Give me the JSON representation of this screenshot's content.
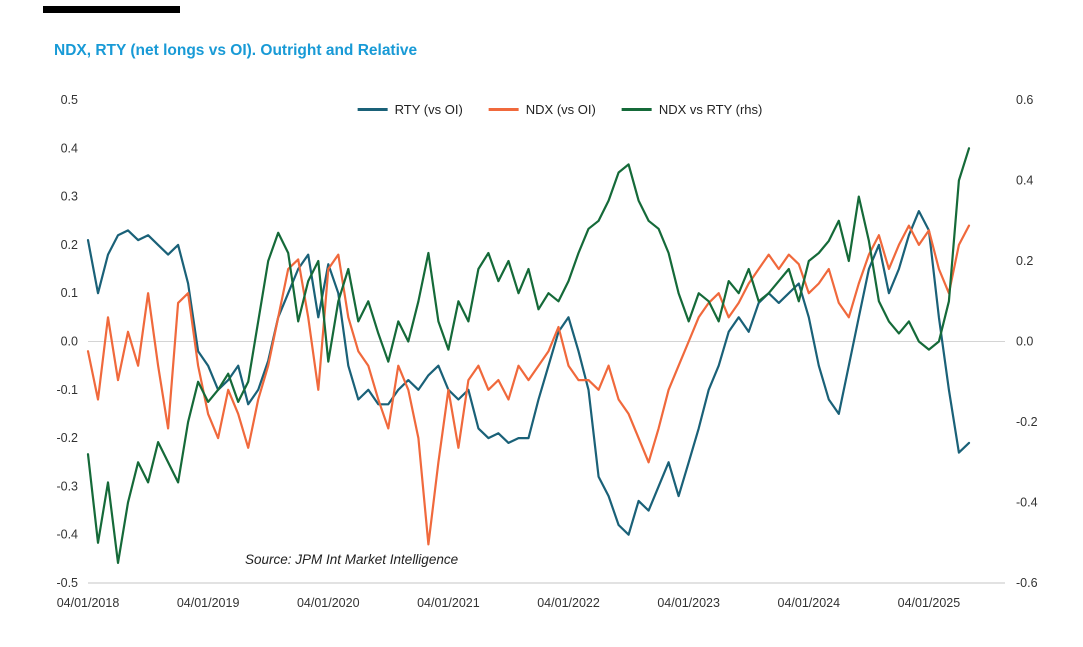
{
  "accent_bar_color": "#000000",
  "title_color": "#189ad6",
  "chart_data": {
    "type": "line",
    "title": "NDX, RTY (net longs vs OI). Outright and Relative",
    "source": "Source: JPM Int Market Intelligence",
    "legend_position": "top-center",
    "grid": "zero-line-only",
    "left_axis": {
      "min": -0.5,
      "max": 0.5,
      "ticks": [
        0.5,
        0.4,
        0.3,
        0.2,
        0.1,
        0.0,
        -0.1,
        -0.2,
        -0.3,
        -0.4,
        -0.5
      ]
    },
    "right_axis": {
      "min": -0.6,
      "max": 0.6,
      "ticks": [
        0.6,
        0.4,
        0.2,
        0.0,
        -0.2,
        -0.4,
        -0.6
      ]
    },
    "x_ticks": [
      "04/01/2018",
      "04/01/2019",
      "04/01/2020",
      "04/01/2021",
      "04/01/2022",
      "04/01/2023",
      "04/01/2024",
      "04/01/2025"
    ],
    "x": [
      "2018-04",
      "2018-05",
      "2018-06",
      "2018-07",
      "2018-08",
      "2018-09",
      "2018-10",
      "2018-11",
      "2018-12",
      "2019-01",
      "2019-02",
      "2019-03",
      "2019-04",
      "2019-05",
      "2019-06",
      "2019-07",
      "2019-08",
      "2019-09",
      "2019-10",
      "2019-11",
      "2019-12",
      "2020-01",
      "2020-02",
      "2020-03",
      "2020-04",
      "2020-05",
      "2020-06",
      "2020-07",
      "2020-08",
      "2020-09",
      "2020-10",
      "2020-11",
      "2020-12",
      "2021-01",
      "2021-02",
      "2021-03",
      "2021-04",
      "2021-05",
      "2021-06",
      "2021-07",
      "2021-08",
      "2021-09",
      "2021-10",
      "2021-11",
      "2021-12",
      "2022-01",
      "2022-02",
      "2022-03",
      "2022-04",
      "2022-05",
      "2022-06",
      "2022-07",
      "2022-08",
      "2022-09",
      "2022-10",
      "2022-11",
      "2022-12",
      "2023-01",
      "2023-02",
      "2023-03",
      "2023-04",
      "2023-05",
      "2023-06",
      "2023-07",
      "2023-08",
      "2023-09",
      "2023-10",
      "2023-11",
      "2023-12",
      "2024-01",
      "2024-02",
      "2024-03",
      "2024-04",
      "2024-05",
      "2024-06",
      "2024-07",
      "2024-08",
      "2024-09",
      "2024-10",
      "2024-11",
      "2024-12",
      "2025-01",
      "2025-02",
      "2025-03",
      "2025-04",
      "2025-05",
      "2025-06",
      "2025-07",
      "2025-08"
    ],
    "series": [
      {
        "name": "RTY (vs OI)",
        "axis": "left",
        "color": "#1a6178",
        "values": [
          0.21,
          0.1,
          0.18,
          0.22,
          0.23,
          0.21,
          0.22,
          0.2,
          0.18,
          0.2,
          0.12,
          -0.02,
          -0.05,
          -0.1,
          -0.08,
          -0.05,
          -0.13,
          -0.1,
          -0.04,
          0.05,
          0.1,
          0.15,
          0.18,
          0.05,
          0.16,
          0.1,
          -0.05,
          -0.12,
          -0.1,
          -0.13,
          -0.13,
          -0.1,
          -0.08,
          -0.1,
          -0.07,
          -0.05,
          -0.1,
          -0.12,
          -0.1,
          -0.18,
          -0.2,
          -0.19,
          -0.21,
          -0.2,
          -0.2,
          -0.12,
          -0.05,
          0.02,
          0.05,
          -0.02,
          -0.1,
          -0.28,
          -0.32,
          -0.38,
          -0.4,
          -0.33,
          -0.35,
          -0.3,
          -0.25,
          -0.32,
          -0.25,
          -0.18,
          -0.1,
          -0.05,
          0.02,
          0.05,
          0.02,
          0.08,
          0.1,
          0.08,
          0.1,
          0.12,
          0.05,
          -0.05,
          -0.12,
          -0.15,
          -0.05,
          0.05,
          0.15,
          0.2,
          0.1,
          0.15,
          0.22,
          0.27,
          0.23,
          0.05,
          -0.1,
          -0.23,
          -0.21
        ]
      },
      {
        "name": "NDX (vs OI)",
        "axis": "left",
        "color": "#f0693c",
        "values": [
          -0.02,
          -0.12,
          0.05,
          -0.08,
          0.02,
          -0.05,
          0.1,
          -0.05,
          -0.18,
          0.08,
          0.1,
          -0.05,
          -0.15,
          -0.2,
          -0.1,
          -0.15,
          -0.22,
          -0.12,
          -0.05,
          0.05,
          0.15,
          0.17,
          0.05,
          -0.1,
          0.15,
          0.18,
          0.05,
          -0.02,
          -0.05,
          -0.12,
          -0.18,
          -0.05,
          -0.1,
          -0.2,
          -0.42,
          -0.25,
          -0.1,
          -0.22,
          -0.08,
          -0.05,
          -0.1,
          -0.08,
          -0.12,
          -0.05,
          -0.08,
          -0.05,
          -0.02,
          0.03,
          -0.05,
          -0.08,
          -0.08,
          -0.1,
          -0.05,
          -0.12,
          -0.15,
          -0.2,
          -0.25,
          -0.18,
          -0.1,
          -0.05,
          0.0,
          0.05,
          0.08,
          0.1,
          0.05,
          0.08,
          0.12,
          0.15,
          0.18,
          0.15,
          0.18,
          0.16,
          0.1,
          0.12,
          0.15,
          0.08,
          0.05,
          0.12,
          0.18,
          0.22,
          0.15,
          0.2,
          0.24,
          0.2,
          0.23,
          0.15,
          0.1,
          0.2,
          0.24
        ]
      },
      {
        "name": "NDX vs RTY (rhs)",
        "axis": "right",
        "color": "#156a39",
        "values": [
          -0.28,
          -0.5,
          -0.35,
          -0.55,
          -0.4,
          -0.3,
          -0.35,
          -0.25,
          -0.3,
          -0.35,
          -0.2,
          -0.1,
          -0.15,
          -0.12,
          -0.08,
          -0.15,
          -0.1,
          0.05,
          0.2,
          0.27,
          0.22,
          0.05,
          0.15,
          0.2,
          -0.05,
          0.1,
          0.18,
          0.05,
          0.1,
          0.02,
          -0.05,
          0.05,
          0.0,
          0.1,
          0.22,
          0.05,
          -0.02,
          0.1,
          0.05,
          0.18,
          0.22,
          0.15,
          0.2,
          0.12,
          0.18,
          0.08,
          0.12,
          0.1,
          0.15,
          0.22,
          0.28,
          0.3,
          0.35,
          0.42,
          0.44,
          0.35,
          0.3,
          0.28,
          0.22,
          0.12,
          0.05,
          0.12,
          0.1,
          0.05,
          0.15,
          0.12,
          0.18,
          0.1,
          0.12,
          0.15,
          0.18,
          0.1,
          0.2,
          0.22,
          0.25,
          0.3,
          0.2,
          0.36,
          0.25,
          0.1,
          0.05,
          0.02,
          0.05,
          0.0,
          -0.02,
          0.0,
          0.1,
          0.4,
          0.48
        ]
      }
    ]
  }
}
